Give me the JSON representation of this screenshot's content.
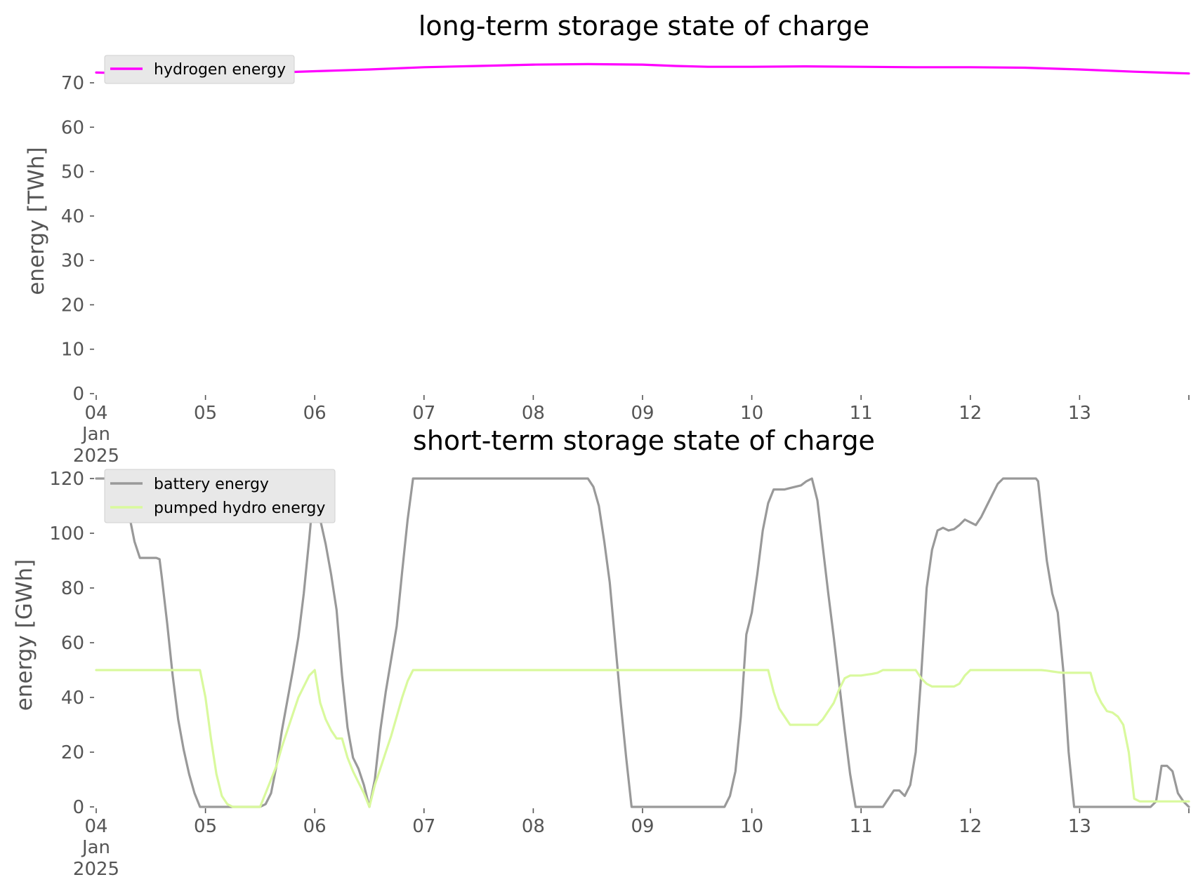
{
  "chart_data": [
    {
      "type": "line",
      "title": "long-term storage state of charge",
      "ylabel": "energy [TWh]",
      "ylim": [
        0,
        74
      ],
      "yticks": [
        0,
        10,
        20,
        30,
        40,
        50,
        60,
        70
      ],
      "x_tick_labels": [
        "04",
        "05",
        "06",
        "07",
        "08",
        "09",
        "10",
        "11",
        "12",
        "13"
      ],
      "x_first_tick_extra": [
        "Jan",
        "2025"
      ],
      "xlim": [
        0,
        10
      ],
      "grid": false,
      "legend_position": "top-left",
      "series": [
        {
          "name": "hydrogen energy",
          "color": "#ff00ff",
          "x": [
            0,
            0.5,
            1,
            1.5,
            2,
            2.5,
            3,
            3.5,
            4,
            4.5,
            5,
            5.3,
            5.6,
            6,
            6.5,
            7,
            7.5,
            8,
            8.5,
            9,
            9.5,
            10
          ],
          "values": [
            72.3,
            72.0,
            71.8,
            72.2,
            72.6,
            73.0,
            73.5,
            73.8,
            74.1,
            74.2,
            74.1,
            73.8,
            73.6,
            73.6,
            73.7,
            73.6,
            73.5,
            73.5,
            73.4,
            73.0,
            72.5,
            72.1
          ]
        }
      ]
    },
    {
      "type": "line",
      "title": "short-term storage state of charge",
      "ylabel": "energy [GWh]",
      "ylim": [
        0,
        120
      ],
      "yticks": [
        0,
        20,
        40,
        60,
        80,
        100,
        120
      ],
      "x_tick_labels": [
        "04",
        "05",
        "06",
        "07",
        "08",
        "09",
        "10",
        "11",
        "12",
        "13"
      ],
      "x_first_tick_extra": [
        "Jan",
        "2025"
      ],
      "xlim": [
        0,
        10
      ],
      "grid": false,
      "legend_position": "top-left",
      "series": [
        {
          "name": "battery energy",
          "color": "#999999",
          "x": [
            0,
            0.2,
            0.25,
            0.3,
            0.35,
            0.4,
            0.45,
            0.5,
            0.55,
            0.58,
            0.6,
            0.65,
            0.7,
            0.75,
            0.8,
            0.85,
            0.9,
            0.95,
            1.0,
            1.05,
            1.5,
            1.55,
            1.6,
            1.65,
            1.7,
            1.75,
            1.8,
            1.85,
            1.9,
            1.95,
            2.0,
            2.05,
            2.1,
            2.15,
            2.2,
            2.25,
            2.3,
            2.35,
            2.4,
            2.45,
            2.5,
            2.55,
            2.6,
            2.65,
            2.7,
            2.75,
            2.8,
            2.85,
            2.9,
            2.95,
            3.0,
            4.0,
            4.5,
            4.55,
            4.6,
            4.65,
            4.7,
            4.75,
            4.8,
            4.85,
            4.9,
            4.95,
            5.0,
            5.5,
            5.75,
            5.8,
            5.85,
            5.9,
            5.95,
            6.0,
            6.05,
            6.1,
            6.15,
            6.2,
            6.25,
            6.3,
            6.35,
            6.4,
            6.45,
            6.5,
            6.55,
            6.6,
            6.65,
            6.7,
            6.75,
            6.8,
            6.85,
            6.9,
            6.95,
            7.0,
            7.15,
            7.2,
            7.25,
            7.3,
            7.35,
            7.4,
            7.45,
            7.5,
            7.55,
            7.6,
            7.65,
            7.7,
            7.75,
            7.8,
            7.85,
            7.9,
            7.95,
            8.0,
            8.05,
            8.1,
            8.15,
            8.2,
            8.25,
            8.3,
            8.35,
            8.4,
            8.45,
            8.5,
            8.55,
            8.6,
            8.62,
            8.65,
            8.7,
            8.75,
            8.8,
            8.85,
            8.9,
            8.95,
            9.0,
            9.45,
            9.5,
            9.55,
            9.6,
            9.65,
            9.7,
            9.75,
            9.8,
            9.85,
            9.9,
            9.95,
            10.0
          ],
          "values": [
            120,
            120,
            117,
            107,
            97,
            91,
            91,
            91,
            91,
            90.5,
            84,
            67,
            48,
            32,
            21,
            12,
            5,
            0,
            0,
            0,
            0,
            1,
            5,
            15,
            28,
            39,
            50,
            62,
            78,
            98,
            120,
            105,
            96,
            85,
            72,
            48,
            29,
            18,
            14,
            8,
            0,
            10,
            28,
            42,
            54,
            66,
            86,
            105,
            120,
            120,
            120,
            120,
            120,
            117,
            110,
            97,
            82,
            60,
            38,
            18,
            0,
            0,
            0,
            0,
            0,
            4,
            13,
            33,
            63,
            71,
            85,
            101,
            111,
            116,
            116,
            116,
            116.5,
            117,
            117.5,
            119,
            120,
            112,
            95,
            78,
            62,
            45,
            28,
            12,
            0,
            0,
            0,
            0,
            3,
            6,
            6,
            4,
            8,
            20,
            48,
            80,
            94,
            101,
            102,
            101,
            101.5,
            103,
            105,
            104,
            103,
            106,
            110,
            114,
            118,
            120,
            120,
            120,
            120,
            120,
            120,
            120,
            119,
            108,
            90,
            78,
            71,
            50,
            20,
            0,
            0,
            0,
            0,
            0,
            0,
            0,
            2,
            15,
            15,
            13,
            5,
            2,
            0
          ]
        },
        {
          "name": "pumped hydro energy",
          "color": "#d9f99d",
          "x": [
            0,
            0.95,
            1.0,
            1.05,
            1.1,
            1.15,
            1.2,
            1.25,
            1.3,
            1.5,
            1.55,
            1.6,
            1.65,
            1.7,
            1.75,
            1.8,
            1.85,
            1.9,
            1.95,
            2.0,
            2.05,
            2.1,
            2.15,
            2.2,
            2.25,
            2.3,
            2.35,
            2.4,
            2.45,
            2.5,
            2.55,
            2.6,
            2.65,
            2.7,
            2.75,
            2.8,
            2.85,
            2.9,
            2.95,
            3.0,
            6.0,
            6.05,
            6.1,
            6.15,
            6.2,
            6.25,
            6.3,
            6.35,
            6.4,
            6.45,
            6.5,
            6.55,
            6.6,
            6.65,
            6.7,
            6.75,
            6.8,
            6.85,
            6.9,
            6.95,
            7.0,
            7.05,
            7.1,
            7.15,
            7.2,
            7.25,
            7.3,
            7.35,
            7.4,
            7.45,
            7.5,
            7.55,
            7.6,
            7.65,
            7.7,
            7.75,
            7.8,
            7.85,
            7.9,
            7.95,
            8.0,
            8.05,
            8.1,
            8.15,
            8.2,
            8.25,
            8.3,
            8.35,
            8.4,
            8.45,
            8.5,
            8.55,
            8.6,
            8.65,
            8.7,
            8.75,
            8.8,
            8.85,
            8.9,
            8.95,
            9.0,
            9.05,
            9.1,
            9.15,
            9.2,
            9.25,
            9.3,
            9.35,
            9.4,
            9.45,
            9.5,
            9.55,
            9.6,
            9.65,
            9.7,
            9.75,
            9.8,
            9.85,
            9.9,
            9.95,
            10.0
          ],
          "values": [
            50,
            50,
            40,
            25,
            12,
            4,
            1,
            0,
            0,
            0,
            5,
            10,
            15,
            22,
            28,
            34,
            40,
            44,
            48,
            50,
            38,
            32,
            28,
            25,
            25,
            18,
            13,
            9,
            5,
            0,
            8,
            14,
            20,
            26,
            33,
            40,
            46,
            50,
            50,
            50,
            50,
            50,
            50,
            50,
            42,
            36,
            33,
            30,
            30,
            30,
            30,
            30,
            30,
            32,
            35,
            38,
            43,
            47,
            48,
            48,
            48,
            48.3,
            48.6,
            49,
            50,
            50,
            50,
            50,
            50,
            50,
            50,
            47,
            45,
            44,
            44,
            44,
            44,
            44,
            45,
            48,
            50,
            50,
            50,
            50,
            50,
            50,
            50,
            50,
            50,
            50,
            50,
            50,
            50,
            50,
            49.8,
            49.5,
            49.2,
            49,
            49,
            49,
            49,
            49,
            49,
            42,
            38,
            35,
            34.5,
            33,
            30,
            20,
            3,
            2,
            2,
            2,
            2,
            2,
            2,
            2,
            2,
            2,
            2
          ]
        }
      ]
    }
  ]
}
